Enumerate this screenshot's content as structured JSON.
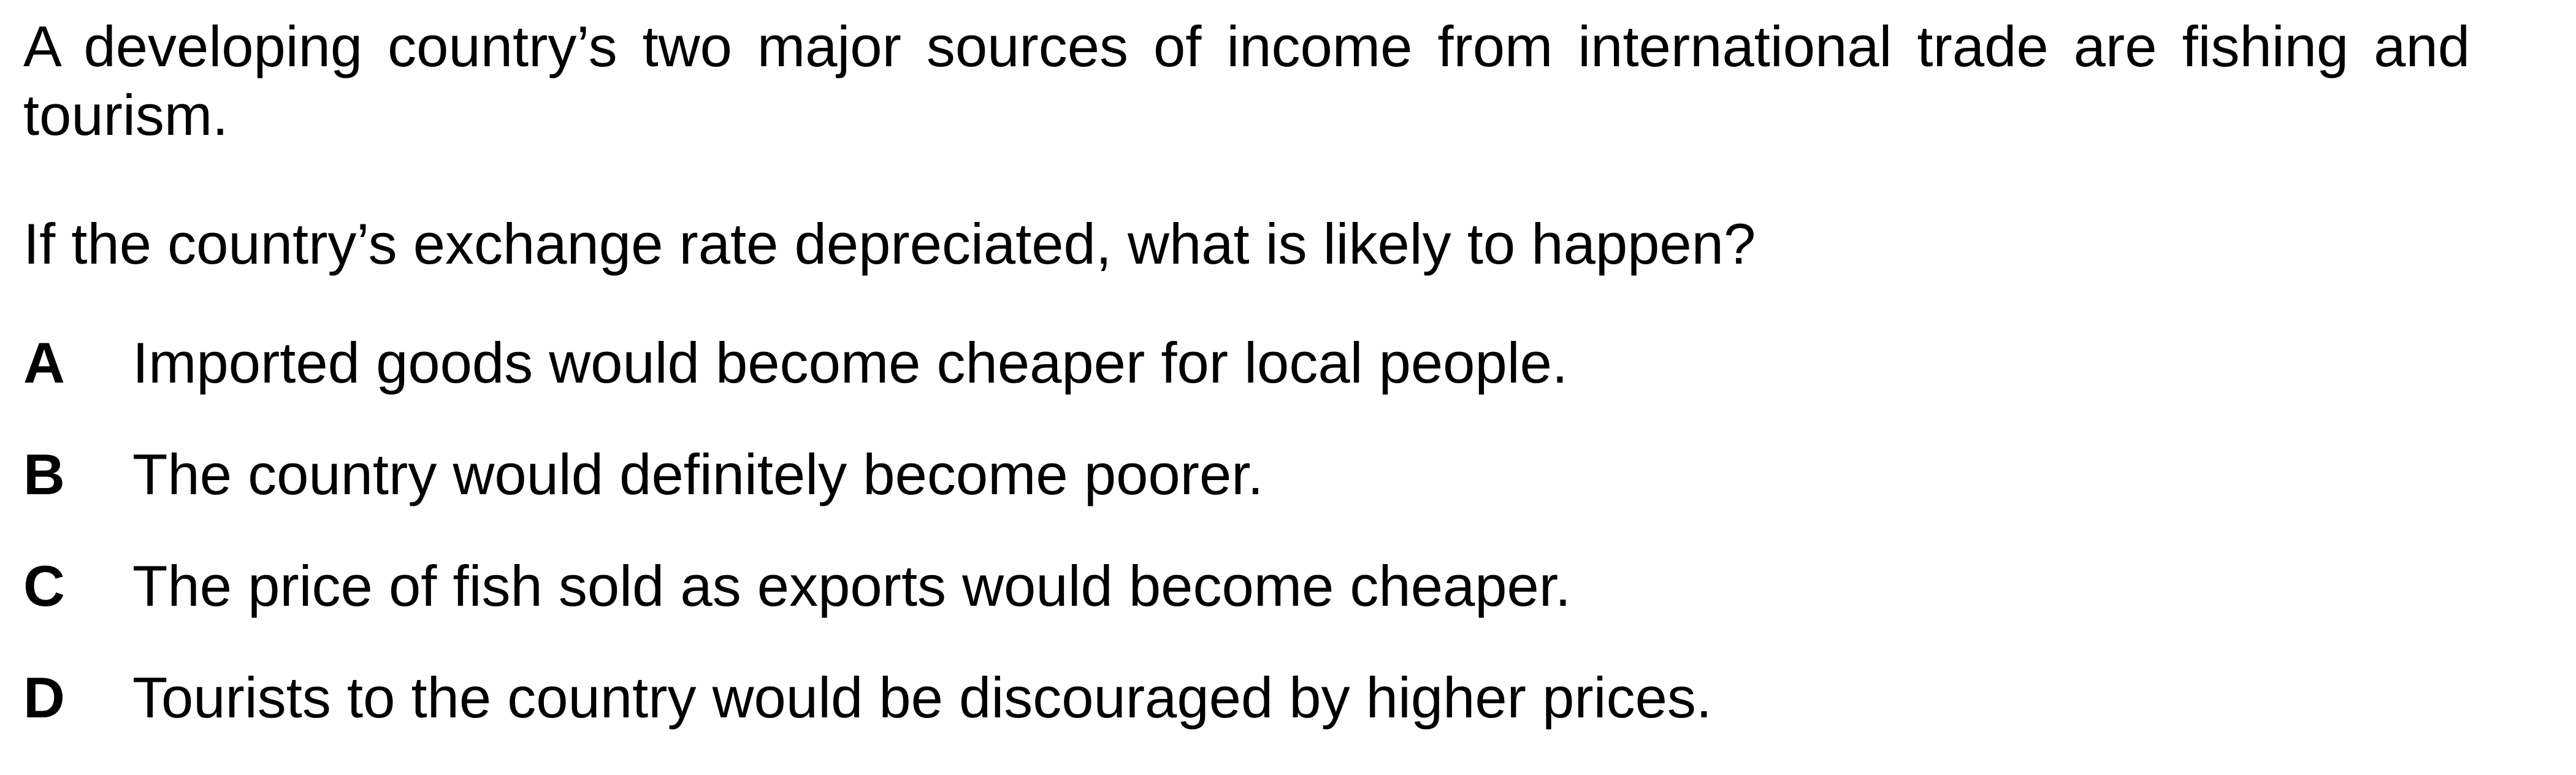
{
  "stem": "A developing country’s two major sources of income from international trade are fishing and tourism.",
  "question": "If the country’s exchange rate depreciated, what is likely to happen?",
  "options": [
    {
      "letter": "A",
      "text": "Imported goods would become cheaper for local people."
    },
    {
      "letter": "B",
      "text": "The country would definitely become poorer."
    },
    {
      "letter": "C",
      "text": "The price of fish sold as exports would become cheaper."
    },
    {
      "letter": "D",
      "text": "Tourists to the country would be discouraged by higher prices."
    }
  ]
}
